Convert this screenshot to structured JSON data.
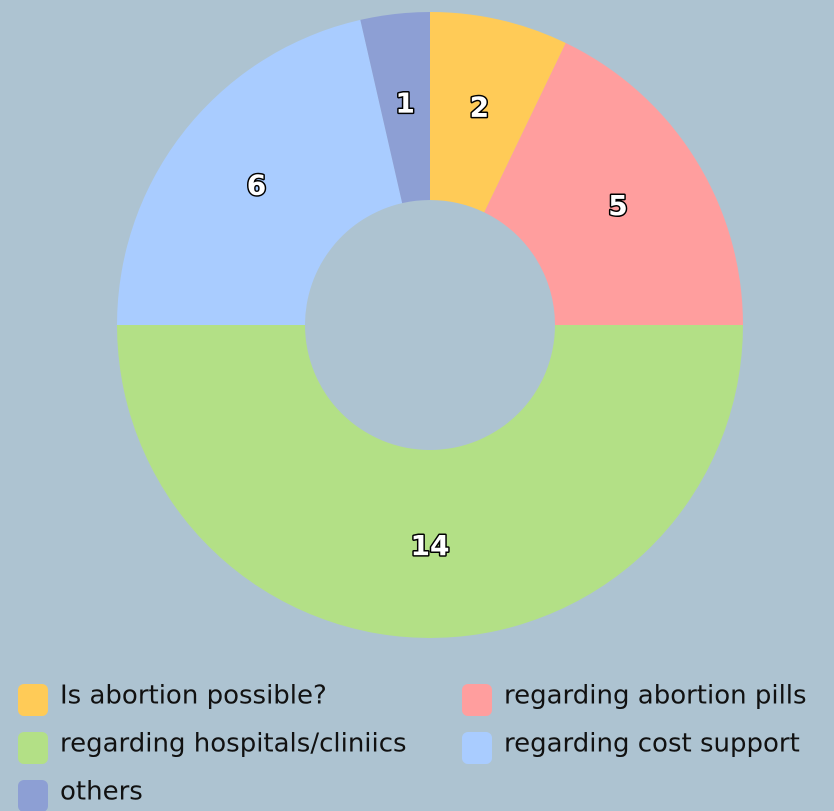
{
  "chart_data": {
    "type": "pie",
    "categories": [
      "Is abortion possible?",
      "regarding abortion pills",
      "regarding hospitals/cliniics",
      "regarding cost support",
      "others"
    ],
    "values": [
      2,
      5,
      14,
      6,
      1
    ],
    "colors": [
      "#ffcb57",
      "#ff9e9e",
      "#b3e086",
      "#a9ccff",
      "#8d9fd4"
    ]
  }
}
